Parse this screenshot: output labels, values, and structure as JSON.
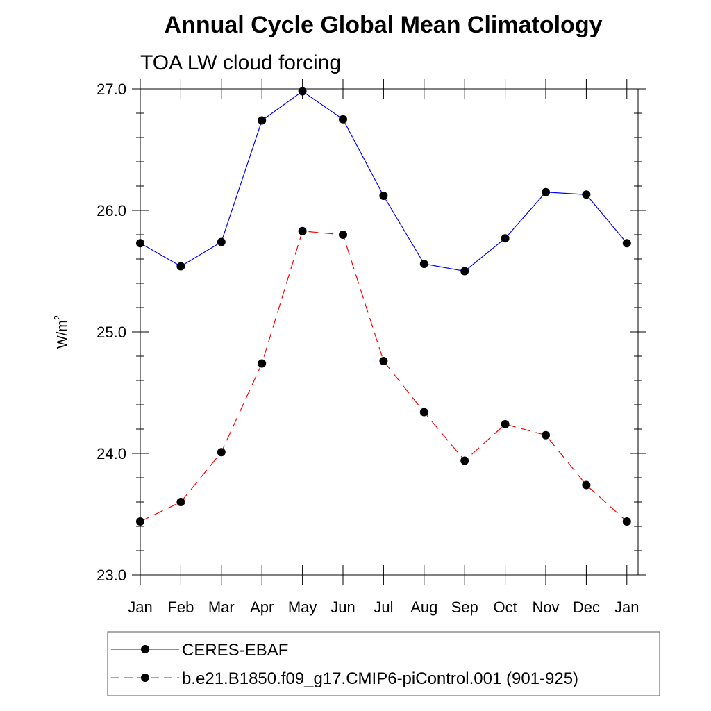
{
  "chart_data": {
    "type": "line",
    "title": "Annual Cycle Global Mean Climatology",
    "subtitle": "TOA LW cloud forcing",
    "ylabel": "W/m",
    "ylabel_superscript": "2",
    "xlabel": "",
    "categories": [
      "Jan",
      "Feb",
      "Mar",
      "Apr",
      "May",
      "Jun",
      "Jul",
      "Aug",
      "Sep",
      "Oct",
      "Nov",
      "Dec",
      "Jan"
    ],
    "ylim": [
      23.0,
      27.0
    ],
    "yticks": [
      "23.0",
      "24.0",
      "25.0",
      "26.0",
      "27.0"
    ],
    "legend_position": "bottom",
    "grid": false,
    "series": [
      {
        "name": "CERES-EBAF",
        "color": "#0000ff",
        "dashed": false,
        "values": [
          25.73,
          25.54,
          25.74,
          26.74,
          26.98,
          26.75,
          26.12,
          25.56,
          25.5,
          25.77,
          26.15,
          26.13,
          25.73
        ]
      },
      {
        "name": "b.e21.B1850.f09_g17.CMIP6-piControl.001 (901-925)",
        "color": "#ff0000",
        "dashed": true,
        "values": [
          23.44,
          23.6,
          24.01,
          24.74,
          25.83,
          25.8,
          24.76,
          24.34,
          23.94,
          24.24,
          24.15,
          23.74,
          23.44
        ]
      }
    ]
  }
}
